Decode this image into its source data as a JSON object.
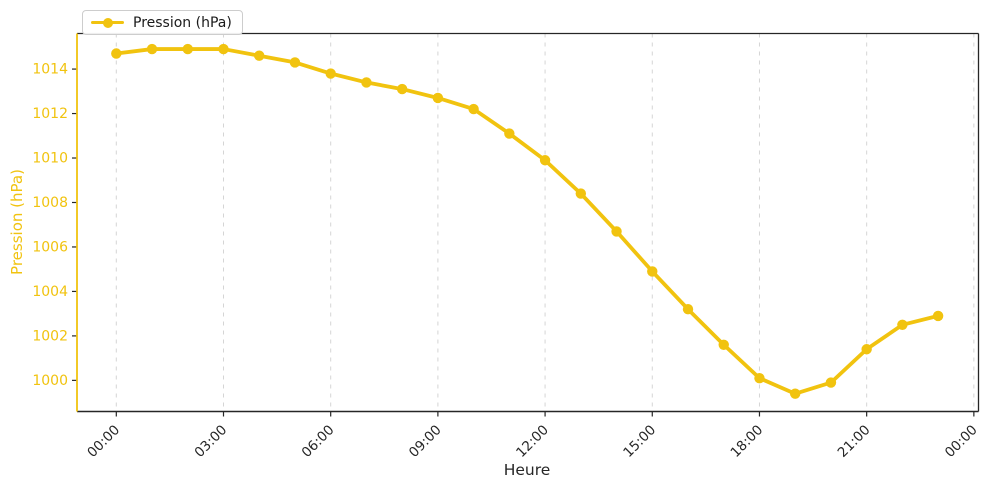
{
  "figure": {
    "background": "#ffffff",
    "accent_gold": "#f1c30f",
    "axis_dark": "#262626",
    "grid_color": "#d5d5d5",
    "tick_label_dark": "#262626"
  },
  "legend": {
    "label": "Pression (hPa)",
    "position": "top-left"
  },
  "chart_data": {
    "type": "line",
    "title": "",
    "xlabel": "Heure",
    "ylabel": "Pression (hPa)",
    "grid": "vertical dashed gridlines at 3-hour intervals",
    "legend_position": "top-left",
    "x_tick_labels": [
      "00:00",
      "03:00",
      "06:00",
      "09:00",
      "12:00",
      "15:00",
      "18:00",
      "21:00",
      "00:00"
    ],
    "x_tick_hours": [
      0,
      3,
      6,
      9,
      12,
      15,
      18,
      21,
      24
    ],
    "y_ticks": [
      1000,
      1002,
      1004,
      1006,
      1008,
      1010,
      1012,
      1014
    ],
    "xlim": [
      -1.1,
      24.13
    ],
    "ylim": [
      998.6,
      1015.6
    ],
    "x": [
      "00:00",
      "01:00",
      "02:00",
      "03:00",
      "04:00",
      "05:00",
      "06:00",
      "07:00",
      "08:00",
      "09:00",
      "10:00",
      "11:00",
      "12:00",
      "13:00",
      "14:00",
      "15:00",
      "16:00",
      "17:00",
      "18:00",
      "19:00",
      "20:00",
      "21:00",
      "22:00",
      "23:00"
    ],
    "series": [
      {
        "name": "Pression (hPa)",
        "color": "#f1c30f",
        "marker": "circle",
        "hours": [
          0,
          1,
          2,
          3,
          4,
          5,
          6,
          7,
          8,
          9,
          10,
          11,
          12,
          13,
          14,
          15,
          16,
          17,
          18,
          19,
          20,
          21,
          22,
          23
        ],
        "values": [
          1014.7,
          1014.9,
          1014.9,
          1014.9,
          1014.6,
          1014.3,
          1013.8,
          1013.4,
          1013.1,
          1012.7,
          1012.2,
          1011.1,
          1009.9,
          1008.4,
          1006.7,
          1004.9,
          1003.2,
          1001.6,
          1000.1,
          999.4,
          999.9,
          1001.4,
          1002.5,
          1002.9
        ]
      }
    ]
  }
}
